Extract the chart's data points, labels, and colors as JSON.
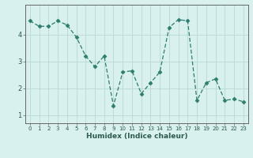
{
  "x": [
    0,
    1,
    2,
    3,
    4,
    5,
    6,
    7,
    8,
    9,
    10,
    11,
    12,
    13,
    14,
    15,
    16,
    17,
    18,
    19,
    20,
    21,
    22,
    23
  ],
  "y": [
    4.5,
    4.3,
    4.3,
    4.5,
    4.35,
    3.9,
    3.2,
    2.8,
    3.2,
    1.35,
    2.6,
    2.65,
    1.8,
    2.2,
    2.6,
    4.25,
    4.55,
    4.5,
    1.55,
    2.2,
    2.35,
    1.55,
    1.6,
    1.5
  ],
  "xlabel": "Humidex (Indice chaleur)",
  "ylim": [
    0.7,
    5.1
  ],
  "xlim": [
    -0.5,
    23.5
  ],
  "yticks": [
    1,
    2,
    3,
    4
  ],
  "xticks": [
    0,
    1,
    2,
    3,
    4,
    5,
    6,
    7,
    8,
    9,
    10,
    11,
    12,
    13,
    14,
    15,
    16,
    17,
    18,
    19,
    20,
    21,
    22,
    23
  ],
  "line_color": "#2d7d6e",
  "marker_color": "#2d7d6e",
  "bg_color": "#d8f0ee",
  "grid_color": "#b8d8d4",
  "axis_color": "#666666",
  "label_color": "#2d5a4e",
  "tick_fontsize": 5.0,
  "xlabel_fontsize": 6.5
}
